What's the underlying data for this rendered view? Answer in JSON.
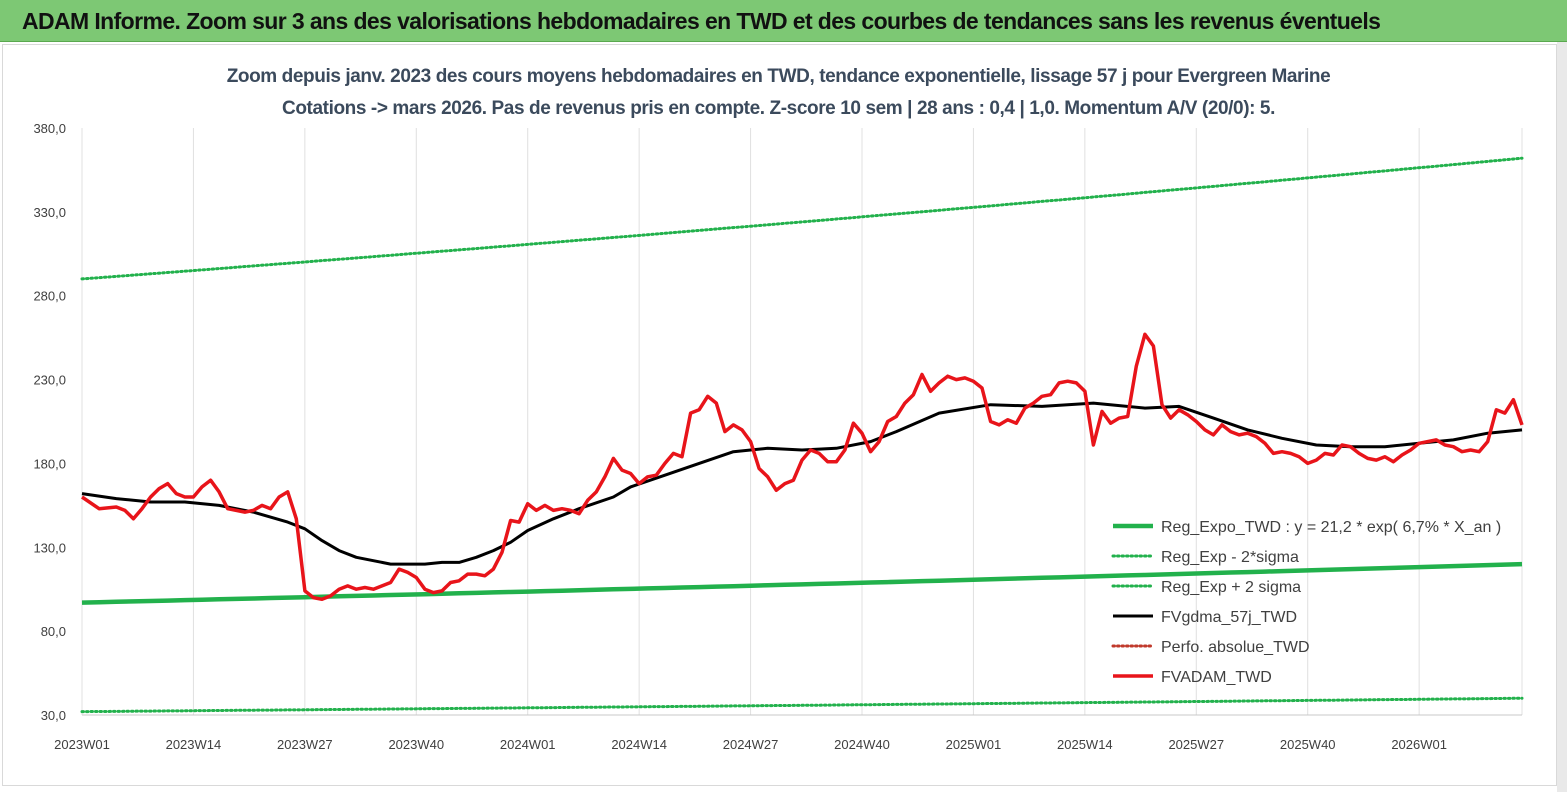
{
  "header": {
    "title": "ADAM Informe. Zoom sur 3 ans des valorisations hebdomadaires en TWD et des courbes de tendances sans les revenus éventuels"
  },
  "chart_data": {
    "type": "line",
    "title": "Zoom depuis janv. 2023 des cours moyens hebdomadaires en TWD, tendance exponentielle, lissage 57 j pour Evergreen Marine",
    "subtitle": "Cotations -> mars 2026. Pas de revenus pris en compte. Z-score 10 sem | 28 ans : 0,4 | 1,0. Momentum A/V (20/0): 5.",
    "xlabel": "",
    "ylabel": "",
    "ylim": [
      30,
      380
    ],
    "yticks": [
      "30,0",
      "80,0",
      "130,0",
      "180,0",
      "230,0",
      "280,0",
      "330,0",
      "380,0"
    ],
    "x_range_weeks": [
      0,
      168
    ],
    "xticks": [
      "2023W01",
      "2023W14",
      "2023W27",
      "2023W40",
      "2024W01",
      "2024W14",
      "2024W27",
      "2024W40",
      "2025W01",
      "2025W14",
      "2025W27",
      "2025W40",
      "2026W01"
    ],
    "grid": "vertical",
    "legend_position": "bottom-right",
    "colors": {
      "green": "#22b14c",
      "black": "#000000",
      "red": "#e8141a",
      "darkred": "#c0392b"
    },
    "series": [
      {
        "name": "Reg_Expo_TWD : y = 21,2 * exp( 6,7% *  X_an )",
        "style": "solid-thick",
        "color": "#22b14c",
        "x": [
          0,
          168
        ],
        "y": [
          97,
          120
        ]
      },
      {
        "name": "Reg_Exp - 2*sigma",
        "style": "dotted",
        "color": "#22b14c",
        "x": [
          0,
          168
        ],
        "y": [
          32,
          40
        ]
      },
      {
        "name": "Reg_Exp + 2 sigma",
        "style": "dotted",
        "color": "#22b14c",
        "x": [
          0,
          168
        ],
        "y": [
          290,
          362
        ]
      },
      {
        "name": "FVgdma_57j_TWD",
        "style": "solid",
        "color": "#000000",
        "x": [
          0,
          4,
          8,
          12,
          16,
          20,
          24,
          26,
          28,
          30,
          32,
          34,
          36,
          40,
          42,
          44,
          46,
          48,
          50,
          52,
          55,
          58,
          62,
          64,
          68,
          72,
          76,
          80,
          84,
          88,
          92,
          95,
          100,
          106,
          112,
          118,
          124,
          128,
          132,
          136,
          140,
          144,
          148,
          152,
          156,
          160,
          164,
          168
        ],
        "y": [
          162,
          159,
          157,
          157,
          155,
          151,
          145,
          141,
          134,
          128,
          124,
          122,
          120,
          120,
          121,
          121,
          124,
          128,
          133,
          140,
          147,
          153,
          160,
          166,
          173,
          180,
          187,
          189,
          188,
          189,
          193,
          199,
          210,
          215,
          214,
          216,
          213,
          214,
          207,
          200,
          195,
          191,
          190,
          190,
          192,
          194,
          198,
          200
        ]
      },
      {
        "name": "Perfo. absolue_TWD",
        "style": "dotted",
        "color": "#c0392b",
        "x": [],
        "y": []
      },
      {
        "name": "FVADAM_TWD",
        "style": "solid-thick",
        "color": "#e8141a",
        "x": [
          0,
          2,
          4,
          5,
          6,
          7,
          8,
          9,
          10,
          11,
          12,
          13,
          14,
          15,
          16,
          17,
          18,
          19,
          20,
          21,
          22,
          23,
          24,
          25,
          26,
          27,
          28,
          29,
          30,
          31,
          32,
          33,
          34,
          35,
          36,
          37,
          38,
          39,
          40,
          41,
          42,
          43,
          44,
          45,
          46,
          47,
          48,
          49,
          50,
          51,
          52,
          53,
          54,
          55,
          56,
          57,
          58,
          59,
          60,
          61,
          62,
          63,
          64,
          65,
          66,
          67,
          68,
          69,
          70,
          71,
          72,
          73,
          74,
          75,
          76,
          77,
          78,
          79,
          80,
          81,
          82,
          83,
          84,
          85,
          86,
          87,
          88,
          89,
          90,
          91,
          92,
          93,
          94,
          95,
          96,
          97,
          98,
          99,
          100,
          101,
          102,
          103,
          104,
          105,
          106,
          107,
          108,
          109,
          110,
          111,
          112,
          113,
          114,
          115,
          116,
          117,
          118,
          119,
          120,
          121,
          122,
          123,
          124,
          125,
          126,
          127,
          128,
          129,
          130,
          131,
          132,
          133,
          134,
          135,
          136,
          137,
          138,
          139,
          140,
          141,
          142,
          143,
          144,
          145,
          146,
          147,
          148,
          149,
          150,
          151,
          152,
          153,
          154,
          155,
          156,
          157,
          158,
          159,
          160,
          161,
          162,
          163,
          164,
          165,
          166,
          167,
          168
        ],
        "y": [
          160,
          153,
          154,
          152,
          147,
          153,
          160,
          165,
          168,
          162,
          160,
          160,
          166,
          170,
          163,
          153,
          152,
          151,
          152,
          155,
          153,
          160,
          163,
          147,
          104,
          100,
          99,
          101,
          105,
          107,
          105,
          106,
          105,
          107,
          109,
          117,
          115,
          112,
          105,
          103,
          104,
          109,
          110,
          114,
          114,
          113,
          117,
          127,
          146,
          145,
          156,
          152,
          155,
          152,
          153,
          152,
          150,
          158,
          163,
          172,
          183,
          176,
          174,
          168,
          172,
          173,
          180,
          186,
          184,
          210,
          212,
          220,
          216,
          199,
          203,
          200,
          193,
          177,
          172,
          164,
          168,
          170,
          182,
          188,
          186,
          181,
          181,
          188,
          204,
          198,
          187,
          193,
          205,
          208,
          216,
          221,
          233,
          223,
          228,
          232,
          230,
          231,
          229,
          225,
          205,
          203,
          206,
          204,
          213,
          216,
          220,
          221,
          228,
          229,
          228,
          223,
          191,
          211,
          204,
          207,
          208,
          238,
          257,
          250,
          215,
          207,
          212,
          209,
          205,
          200,
          197,
          203,
          199,
          197,
          198,
          196,
          192,
          186,
          187,
          186,
          184,
          180,
          182,
          186,
          185,
          191,
          190,
          186,
          183,
          182,
          184,
          181,
          185,
          188,
          192,
          193,
          194,
          191,
          190,
          187,
          188,
          187,
          193,
          212,
          210,
          218,
          203
        ]
      }
    ]
  }
}
